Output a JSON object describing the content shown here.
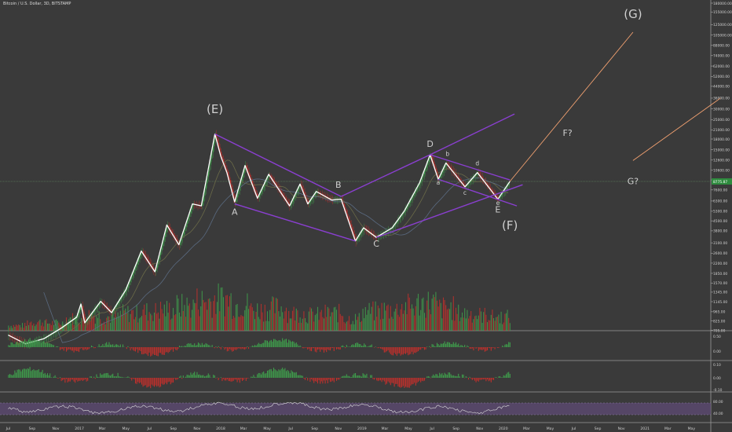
{
  "header": {
    "title": "Bitcoin / U.S. Dollar, 3D, BITSTAMP"
  },
  "colors": {
    "background": "#3a3a3a",
    "price_line": "#ffffff",
    "channel": "#8a3fd0",
    "projection": "#f0a070",
    "up": "#3f9e4c",
    "down": "#c0302c",
    "ma": "#6a6a48",
    "ma2": "#5a6a80",
    "axis_text": "#cfcfcf",
    "current_price_tag": "#2e8b3e",
    "rsi_band": "#5c4a72",
    "rsi_line": "#d9d9d9"
  },
  "chart_data": {
    "type": "line",
    "symbol": "Bitcoin / U.S. Dollar",
    "interval": "3D",
    "exchange": "BITSTAMP",
    "y_scale": "log",
    "ylim": [
      700,
      180000
    ],
    "y_ticks": [
      "180000.00",
      "155000.00",
      "125000.00",
      "105000.00",
      "88000.00",
      "74000.00",
      "62000.00",
      "52000.00",
      "44000.00",
      "36000.00",
      "30000.00",
      "25000.00",
      "21000.00",
      "18000.00",
      "15000.00",
      "12600.00",
      "10600.00",
      "9000.00",
      "7600.00",
      "6300.00",
      "5300.00",
      "4500.00",
      "3800.00",
      "3100.00",
      "2600.00",
      "2200.00",
      "1850.00",
      "1570.00",
      "1345.00",
      "1145.00",
      "965.00",
      "825.00",
      "705.00"
    ],
    "current_price": "8775.87",
    "x_ticks": [
      "Jul",
      "Sep",
      "Nov",
      "2017",
      "Mar",
      "May",
      "Jul",
      "Sep",
      "Nov",
      "2018",
      "Mar",
      "May",
      "Jul",
      "Sep",
      "Nov",
      "2019",
      "Mar",
      "May",
      "Jul",
      "Sep",
      "Nov",
      "2020",
      "Mar",
      "May",
      "Jul",
      "Sep",
      "Nov",
      "2021",
      "Mar",
      "May"
    ],
    "series": [
      {
        "kind": "price",
        "values": [
          [
            "2016-07-01",
            650
          ],
          [
            "2016-08-15",
            560
          ],
          [
            "2016-10-01",
            610
          ],
          [
            "2016-11-15",
            730
          ],
          [
            "2016-12-25",
            880
          ],
          [
            "2017-01-05",
            1100
          ],
          [
            "2017-01-15",
            800
          ],
          [
            "2017-02-25",
            1150
          ],
          [
            "2017-03-25",
            950
          ],
          [
            "2017-05-01",
            1400
          ],
          [
            "2017-06-10",
            2700
          ],
          [
            "2017-07-15",
            1900
          ],
          [
            "2017-08-15",
            4200
          ],
          [
            "2017-09-15",
            3000
          ],
          [
            "2017-10-20",
            6000
          ],
          [
            "2017-11-12",
            5800
          ],
          [
            "2017-12-17",
            19600
          ],
          [
            "2018-01-01",
            13500
          ],
          [
            "2018-01-17",
            10200
          ],
          [
            "2018-02-06",
            6200
          ],
          [
            "2018-03-05",
            11500
          ],
          [
            "2018-04-06",
            6600
          ],
          [
            "2018-05-05",
            9900
          ],
          [
            "2018-06-28",
            5800
          ],
          [
            "2018-07-25",
            8400
          ],
          [
            "2018-08-14",
            6000
          ],
          [
            "2018-09-05",
            7400
          ],
          [
            "2018-10-15",
            6400
          ],
          [
            "2018-11-08",
            6500
          ],
          [
            "2018-12-15",
            3200
          ],
          [
            "2019-01-05",
            4000
          ],
          [
            "2019-02-07",
            3400
          ],
          [
            "2019-03-20",
            4000
          ],
          [
            "2019-04-20",
            5300
          ],
          [
            "2019-05-30",
            8600
          ],
          [
            "2019-06-26",
            13800
          ],
          [
            "2019-07-17",
            9100
          ],
          [
            "2019-08-06",
            12000
          ],
          [
            "2019-09-24",
            8000
          ],
          [
            "2019-10-26",
            10200
          ],
          [
            "2019-12-18",
            6500
          ],
          [
            "2020-01-18",
            8775
          ]
        ]
      },
      {
        "kind": "volume",
        "values": [
          0.15,
          0.25,
          0.22,
          0.35,
          0.45,
          0.4,
          0.5,
          0.55,
          0.6,
          0.7,
          0.85,
          0.9,
          0.75,
          0.6,
          0.65,
          0.5,
          0.45,
          0.5,
          0.35,
          0.55,
          0.6,
          0.7,
          0.8,
          0.65,
          0.5,
          0.45,
          0.4
        ]
      },
      {
        "kind": "oscillator_1",
        "ylim": [
          -0.5,
          0.5
        ],
        "ticks": [
          "0.50",
          "0.00"
        ]
      },
      {
        "kind": "oscillator_2",
        "ylim": [
          -0.15,
          0.15
        ],
        "ticks": [
          "0.10",
          "0.00",
          "-0.10"
        ]
      },
      {
        "kind": "rsi",
        "ylim": [
          20,
          100
        ],
        "ticks": [
          "80.00",
          "40.00"
        ],
        "band": [
          30,
          70
        ]
      }
    ],
    "annotations": [
      {
        "label": "(E)",
        "date": "2017-12-17",
        "price": 28000,
        "size": "large"
      },
      {
        "label": "A",
        "date": "2018-02-06",
        "price": 5000,
        "size": "small"
      },
      {
        "label": "B",
        "date": "2018-11-01",
        "price": 7900,
        "size": "small"
      },
      {
        "label": "C",
        "date": "2019-02-07",
        "price": 2900,
        "size": "small"
      },
      {
        "label": "D",
        "date": "2019-06-26",
        "price": 15800,
        "size": "small"
      },
      {
        "label": "a",
        "date": "2019-07-17",
        "price": 8300,
        "size": "tiny"
      },
      {
        "label": "b",
        "date": "2019-08-10",
        "price": 13500,
        "size": "tiny"
      },
      {
        "label": "c",
        "date": "2019-09-24",
        "price": 7000,
        "size": "tiny"
      },
      {
        "label": "d",
        "date": "2019-10-26",
        "price": 11500,
        "size": "tiny"
      },
      {
        "label": "e",
        "date": "2019-12-18",
        "price": 5900,
        "size": "tiny"
      },
      {
        "label": "E",
        "date": "2019-12-18",
        "price": 5200,
        "size": "small"
      },
      {
        "label": "(F)",
        "date": "2020-01-18",
        "price": 3900,
        "size": "large"
      },
      {
        "label": "F?",
        "date": "2020-06-15",
        "price": 19000,
        "size": "small"
      },
      {
        "label": "(G)",
        "date": "2020-12-01",
        "price": 140000,
        "size": "large"
      },
      {
        "label": "G?",
        "date": "2020-12-01",
        "price": 8400,
        "size": "small"
      }
    ],
    "trendlines": [
      {
        "kind": "channel",
        "from": [
          "2017-12-17",
          19600
        ],
        "to": [
          "2018-11-08",
          6800
        ]
      },
      {
        "kind": "channel",
        "from": [
          "2018-02-06",
          6000
        ],
        "to": [
          "2018-12-15",
          3200
        ]
      },
      {
        "kind": "channel",
        "from": [
          "2018-11-08",
          6800
        ],
        "to": [
          "2019-06-26",
          13800
        ]
      },
      {
        "kind": "channel",
        "from": [
          "2019-06-26",
          13800
        ],
        "to": [
          "2020-01-30",
          27500
        ]
      },
      {
        "kind": "channel",
        "from": [
          "2019-02-07",
          3400
        ],
        "to": [
          "2020-02-20",
          8300
        ]
      },
      {
        "kind": "channel",
        "from": [
          "2019-06-26",
          13800
        ],
        "to": [
          "2020-01-18",
          9000
        ]
      },
      {
        "kind": "channel",
        "from": [
          "2019-07-17",
          9100
        ],
        "to": [
          "2020-02-05",
          5800
        ]
      },
      {
        "kind": "projection",
        "from": [
          "2020-01-18",
          8775
        ],
        "to": [
          "2020-12-01",
          110000
        ]
      },
      {
        "kind": "projection",
        "from": [
          "2020-12-01",
          12500
        ],
        "to": [
          "2021-07-15",
          36000
        ]
      }
    ]
  }
}
